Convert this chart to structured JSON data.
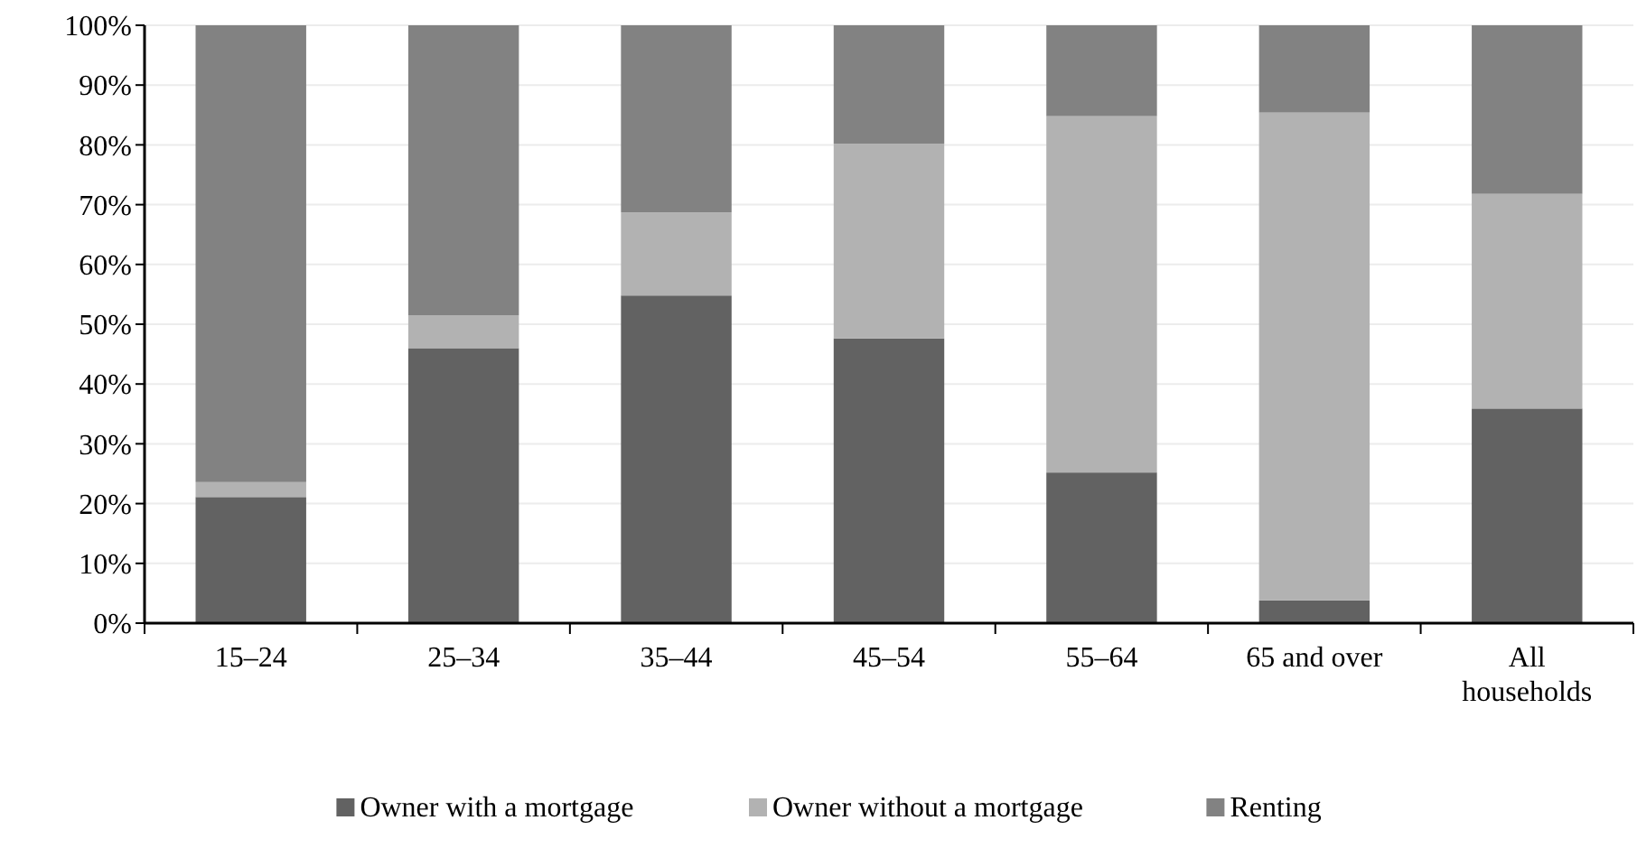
{
  "chart_data": {
    "type": "bar",
    "stacked": true,
    "categories": [
      "15–24",
      "25–34",
      "35–44",
      "45–54",
      "55–64",
      "65 and over",
      "All households"
    ],
    "series": [
      {
        "name": "Owner with a mortgage",
        "color": "#626262",
        "values": [
          21.1,
          46.0,
          54.8,
          47.6,
          25.2,
          3.8,
          35.9
        ]
      },
      {
        "name": "Owner without a mortgage",
        "color": "#b2b2b2",
        "values": [
          2.5,
          5.5,
          13.9,
          32.6,
          59.6,
          81.6,
          35.9
        ]
      },
      {
        "name": "Renting",
        "color": "#828282",
        "values": [
          76.4,
          48.5,
          31.3,
          19.8,
          15.2,
          14.6,
          28.2
        ]
      }
    ],
    "ylim": [
      0,
      100
    ],
    "yticks": [
      {
        "value": 0,
        "label": "0%"
      },
      {
        "value": 10,
        "label": "10%"
      },
      {
        "value": 20,
        "label": "20%"
      },
      {
        "value": 30,
        "label": "30%"
      },
      {
        "value": 40,
        "label": "40%"
      },
      {
        "value": 50,
        "label": "50%"
      },
      {
        "value": 60,
        "label": "60%"
      },
      {
        "value": 70,
        "label": "70%"
      },
      {
        "value": 80,
        "label": "80%"
      },
      {
        "value": 90,
        "label": "90%"
      },
      {
        "value": 100,
        "label": "100%"
      }
    ],
    "grid": "y",
    "legend": "bottom"
  }
}
